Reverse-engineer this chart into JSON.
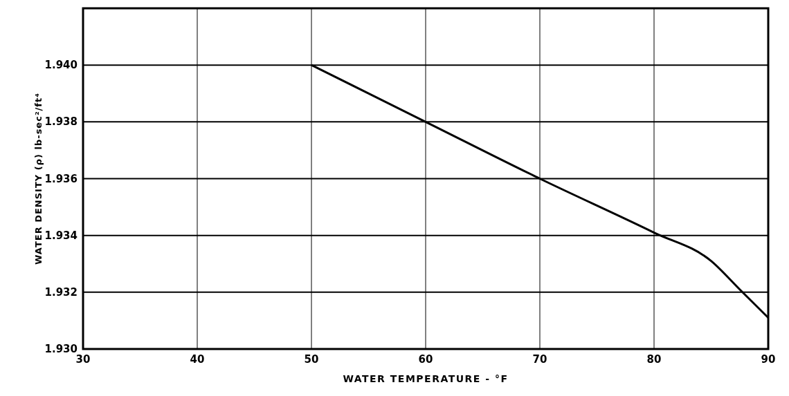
{
  "chart_data": {
    "type": "line",
    "xlabel": "WATER TEMPERATURE - °F",
    "ylabel": "WATER DENSITY (ρ) lb-sec²/ft⁴",
    "x": [
      50,
      60,
      70,
      80,
      85,
      87.5,
      90
    ],
    "series": [
      {
        "color": "#000000",
        "values": [
          1.94,
          1.938,
          1.936,
          1.9341,
          1.9331,
          1.9321,
          1.9311
        ]
      }
    ],
    "xlim": [
      30,
      90
    ],
    "xticks": [
      30,
      40,
      50,
      60,
      70,
      80,
      90
    ],
    "ylim": [
      1.93,
      1.942
    ],
    "yticks": [
      {
        "value": 1.93,
        "label": "1.930"
      },
      {
        "value": 1.932,
        "label": "1.932"
      },
      {
        "value": 1.934,
        "label": "1.934"
      },
      {
        "value": 1.936,
        "label": "1.936"
      },
      {
        "value": 1.938,
        "label": "1.938"
      },
      {
        "value": 1.94,
        "label": "1.940"
      },
      {
        "value": 1.942,
        "label": null
      }
    ],
    "grid": true,
    "marker": "none",
    "line_style": "solid"
  }
}
